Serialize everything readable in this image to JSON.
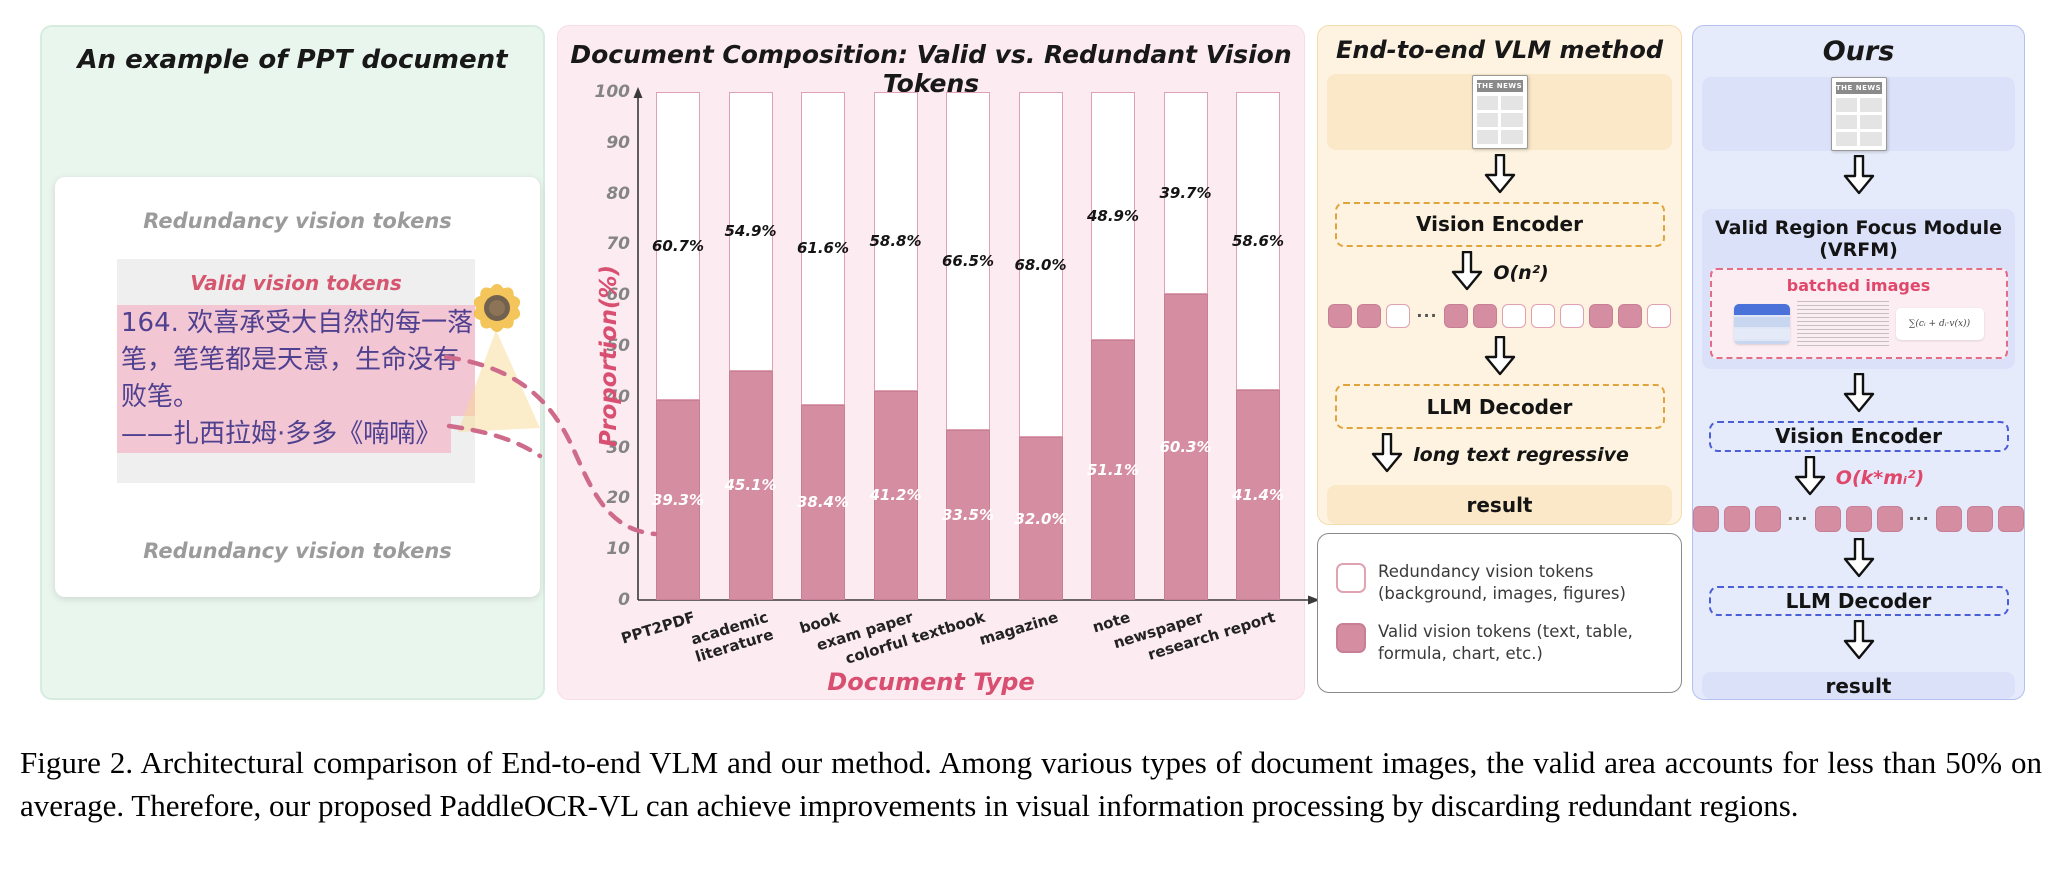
{
  "left_panel": {
    "title": "An example of PPT document",
    "redundancy_top": "Redundancy vision tokens",
    "redundancy_bottom": "Redundancy vision tokens",
    "valid_label": "Valid vision tokens",
    "ppt_lines": [
      "164. 欢喜承受大自然的每一落",
      "笔，笔笔都是天意，生命没有",
      "败笔。",
      "——扎西拉姆·多多《喃喃》"
    ]
  },
  "chart_data": {
    "type": "bar",
    "stacked": true,
    "title": "Document Composition: Valid vs. Redundant Vision Tokens",
    "xlabel": "Document Type",
    "ylabel": "Proportion(%)",
    "ylim": [
      0,
      100
    ],
    "yticks": [
      0,
      10,
      20,
      30,
      40,
      50,
      60,
      70,
      80,
      90,
      100
    ],
    "grid": false,
    "legend_position": "separate-box",
    "categories": [
      "PPT2PDF",
      "academic literature",
      "book",
      "exam paper",
      "colorful textbook",
      "magazine",
      "note",
      "newspaper",
      "research report"
    ],
    "series": [
      {
        "name": "Valid vision tokens",
        "color": "#d58da2",
        "values": [
          39.3,
          45.1,
          38.4,
          41.2,
          33.5,
          32.0,
          51.1,
          60.3,
          41.4
        ]
      },
      {
        "name": "Redundancy vision tokens",
        "color": "#ffffff",
        "values": [
          60.7,
          54.9,
          61.6,
          58.8,
          66.5,
          68.0,
          48.9,
          39.7,
          58.6
        ]
      }
    ]
  },
  "vlm_panel": {
    "title": "End-to-end VLM method",
    "doc_icon": "document-icon",
    "doc_icon_label": "THE NEWS",
    "vision_encoder": "Vision Encoder",
    "complexity": "O(n²)",
    "tokens": [
      "valid",
      "valid",
      "redundant",
      "dots",
      "valid",
      "valid",
      "redundant",
      "redundant",
      "redundant",
      "valid",
      "valid",
      "redundant"
    ],
    "llm_decoder": "LLM Decoder",
    "decoder_note": "long text regressive",
    "result": "result"
  },
  "ours_panel": {
    "title": "Ours",
    "doc_icon": "document-icon",
    "doc_icon_label": "THE NEWS",
    "vrfm_title": "Valid Region Focus Module (VRFM)",
    "batched_label": "batched images",
    "formula_thumb": "∑(cᵢ + dᵢ·v(x))",
    "vision_encoder": "Vision Encoder",
    "complexity": "O(k*mᵢ²)",
    "tokens": [
      "valid",
      "valid",
      "valid",
      "dots",
      "valid",
      "valid",
      "valid",
      "dots",
      "valid",
      "valid",
      "valid"
    ],
    "llm_decoder": "LLM Decoder",
    "result": "result"
  },
  "legend": {
    "items": [
      {
        "swatch": "redundant",
        "label": "Redundancy vision tokens (background, images, figures)"
      },
      {
        "swatch": "valid",
        "label": "Valid vision tokens (text, table, formula, chart, etc.)"
      }
    ]
  },
  "caption": "Figure 2. Architectural comparison of End-to-end VLM and our method. Among various types of document images, the valid area accounts for less than 50% on average. Therefore, our proposed PaddleOCR-VL can achieve improvements in visual information processing by discarding redundant regions.",
  "colors": {
    "valid_token": "#d58da2",
    "redundant_border": "#dfa0b1",
    "axis_label_pink": "#d94f72",
    "dashed_orange": "#dfa43c",
    "dashed_blue": "#4a5ed6",
    "batched_pink": "#e0486b",
    "connector_pink": "#cf6b8a"
  }
}
